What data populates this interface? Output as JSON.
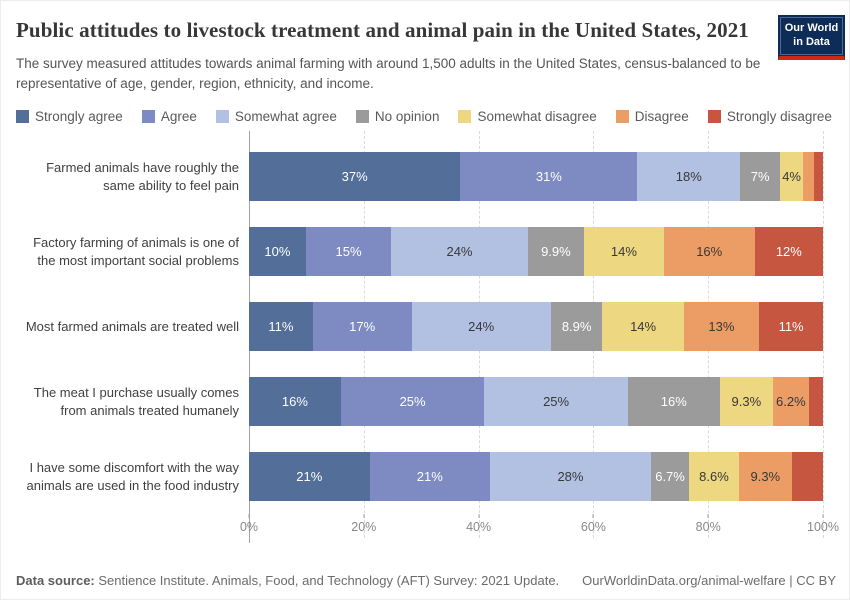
{
  "header": {
    "title": "Public attitudes to livestock treatment and animal pain in the United States, 2021",
    "subtitle": "The survey measured attitudes towards animal farming with around 1,500 adults in the United States, census-balanced to be representative of age, gender, region, ethnicity, and income.",
    "logo_line1": "Our World",
    "logo_line2": "in Data"
  },
  "colors": {
    "accent_navy": "#0d2c57",
    "accent_red": "#cc2a13"
  },
  "chart_data": {
    "type": "bar",
    "stacked": true,
    "orientation": "horizontal",
    "unit": "%",
    "xlim": [
      0,
      100
    ],
    "x_ticks": [
      "0%",
      "20%",
      "40%",
      "60%",
      "80%",
      "100%"
    ],
    "grid": "dashed-vertical",
    "legend_position": "top",
    "series_names": [
      "Strongly agree",
      "Agree",
      "Somewhat agree",
      "No opinion",
      "Somewhat disagree",
      "Disagree",
      "Strongly disagree"
    ],
    "series_colors": [
      "#526E99",
      "#7D8BC2",
      "#B2C0E1",
      "#9B9B9B",
      "#EDD780",
      "#EC9D66",
      "#C65640"
    ],
    "series_label_colors": [
      "#ffffff",
      "#ffffff",
      "#383838",
      "#ffffff",
      "#383838",
      "#383838",
      "#ffffff"
    ],
    "rows": [
      {
        "label": "Farmed animals have roughly the same ability to feel pain",
        "values": [
          37,
          31,
          18,
          7,
          4,
          2,
          1.5
        ],
        "labels": [
          "37%",
          "31%",
          "18%",
          "7%",
          "4%",
          "",
          ""
        ]
      },
      {
        "label": "Factory farming of animals is one of the most important social problems",
        "values": [
          10,
          15,
          24,
          9.9,
          14,
          16,
          12
        ],
        "labels": [
          "10%",
          "15%",
          "24%",
          "9.9%",
          "14%",
          "16%",
          "12%"
        ]
      },
      {
        "label": "Most farmed animals are treated well",
        "values": [
          11,
          17,
          24,
          8.9,
          14,
          13,
          11
        ],
        "labels": [
          "11%",
          "17%",
          "24%",
          "8.9%",
          "14%",
          "13%",
          "11%"
        ]
      },
      {
        "label": "The meat I purchase usually comes from animals treated humanely",
        "values": [
          16,
          25,
          25,
          16,
          9.3,
          6.2,
          2.5
        ],
        "labels": [
          "16%",
          "25%",
          "25%",
          "16%",
          "9.3%",
          "6.2%",
          ""
        ]
      },
      {
        "label": "I have some discomfort with the way animals are used in the food industry",
        "values": [
          21,
          21,
          28,
          6.7,
          8.6,
          9.3,
          5.4
        ],
        "labels": [
          "21%",
          "21%",
          "28%",
          "6.7%",
          "8.6%",
          "9.3%",
          ""
        ]
      }
    ]
  },
  "footer": {
    "source_label": "Data source:",
    "source_text": " Sentience Institute. Animals, Food, and Technology (AFT) Survey: 2021 Update.",
    "attribution": "OurWorldinData.org/animal-welfare | CC BY"
  }
}
